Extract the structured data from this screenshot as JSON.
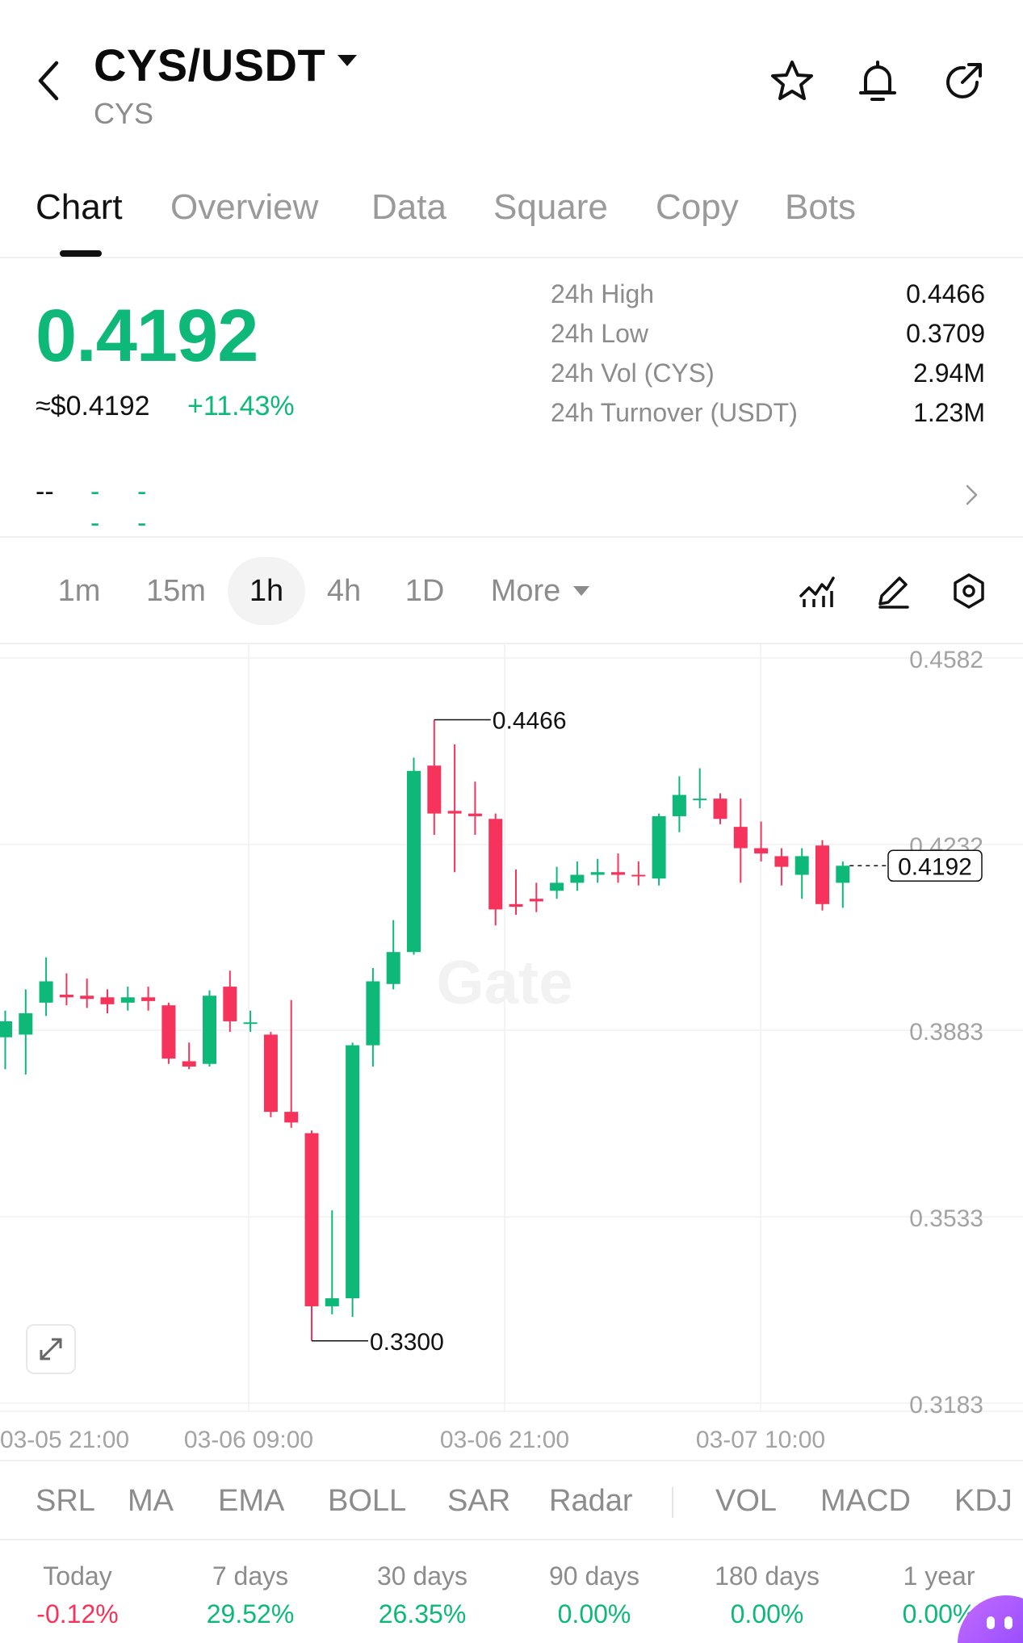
{
  "header": {
    "pair": "CYS/USDT",
    "base": "CYS",
    "icons": [
      "back-icon",
      "star-icon",
      "bell-icon",
      "share-icon"
    ]
  },
  "tabs": [
    {
      "label": "Chart",
      "active": true
    },
    {
      "label": "Overview",
      "active": false
    },
    {
      "label": "Data",
      "active": false
    },
    {
      "label": "Square",
      "active": false
    },
    {
      "label": "Copy",
      "active": false
    },
    {
      "label": "Bots",
      "active": false
    }
  ],
  "price": {
    "last": "0.4192",
    "usd": "≈$0.4192",
    "change": "+11.43%"
  },
  "stats": [
    {
      "key": "24h  High",
      "value": "0.4466"
    },
    {
      "key": "24h  Low",
      "value": "0.3709"
    },
    {
      "key": "24h  Vol (CYS)",
      "value": "2.94M"
    },
    {
      "key": "24h  Turnover (USDT)",
      "value": "1.23M"
    }
  ],
  "dashes": {
    "first": "--",
    "second": "--",
    "third": "--"
  },
  "intervals": [
    {
      "label": "1m",
      "active": false
    },
    {
      "label": "15m",
      "active": false
    },
    {
      "label": "1h",
      "active": true
    },
    {
      "label": "4h",
      "active": false
    },
    {
      "label": "1D",
      "active": false
    },
    {
      "label": "More",
      "active": false
    }
  ],
  "tools": [
    "indicator-icon",
    "draw-pen-icon",
    "settings-hex-icon"
  ],
  "colors": {
    "up": "#0eb879",
    "down": "#f6345b",
    "grid": "#f0f0f0",
    "text_muted": "#8c8c8c"
  },
  "chart_data": {
    "type": "candlestick",
    "watermark": "Gate",
    "yticks": [
      "0.4582",
      "0.4232",
      "0.3883",
      "0.3533",
      "0.3183"
    ],
    "xticks": [
      "03-05 21:00",
      "03-06 09:00",
      "03-06 21:00",
      "03-07 10:00"
    ],
    "ylim": [
      0.3183,
      0.4582
    ],
    "high_label": "0.4466",
    "low_label": "0.3300",
    "last_price_label": "0.4192",
    "candles": [
      {
        "o": 0.387,
        "c": 0.39,
        "h": 0.392,
        "l": 0.381
      },
      {
        "o": 0.3875,
        "c": 0.3915,
        "h": 0.396,
        "l": 0.38
      },
      {
        "o": 0.3935,
        "c": 0.3975,
        "h": 0.402,
        "l": 0.391
      },
      {
        "o": 0.395,
        "c": 0.3945,
        "h": 0.399,
        "l": 0.393
      },
      {
        "o": 0.3948,
        "c": 0.3942,
        "h": 0.398,
        "l": 0.3925
      },
      {
        "o": 0.3945,
        "c": 0.3932,
        "h": 0.396,
        "l": 0.3915
      },
      {
        "o": 0.3935,
        "c": 0.3945,
        "h": 0.3965,
        "l": 0.392
      },
      {
        "o": 0.3945,
        "c": 0.3938,
        "h": 0.3965,
        "l": 0.392
      },
      {
        "o": 0.393,
        "c": 0.383,
        "h": 0.3935,
        "l": 0.382
      },
      {
        "o": 0.3825,
        "c": 0.3815,
        "h": 0.386,
        "l": 0.381
      },
      {
        "o": 0.382,
        "c": 0.3948,
        "h": 0.3958,
        "l": 0.3815
      },
      {
        "o": 0.3965,
        "c": 0.39,
        "h": 0.3995,
        "l": 0.388
      },
      {
        "o": 0.3898,
        "c": 0.3898,
        "h": 0.392,
        "l": 0.388
      },
      {
        "o": 0.3875,
        "c": 0.373,
        "h": 0.388,
        "l": 0.372
      },
      {
        "o": 0.373,
        "c": 0.371,
        "h": 0.394,
        "l": 0.37
      },
      {
        "o": 0.369,
        "c": 0.3365,
        "h": 0.3695,
        "l": 0.33
      },
      {
        "o": 0.3365,
        "c": 0.338,
        "h": 0.3545,
        "l": 0.335
      },
      {
        "o": 0.338,
        "c": 0.3855,
        "h": 0.386,
        "l": 0.3345
      },
      {
        "o": 0.3855,
        "c": 0.3975,
        "h": 0.4,
        "l": 0.3815
      },
      {
        "o": 0.397,
        "c": 0.403,
        "h": 0.409,
        "l": 0.396
      },
      {
        "o": 0.403,
        "c": 0.437,
        "h": 0.4395,
        "l": 0.4025
      },
      {
        "o": 0.438,
        "c": 0.429,
        "h": 0.4466,
        "l": 0.425
      },
      {
        "o": 0.4295,
        "c": 0.429,
        "h": 0.442,
        "l": 0.418
      },
      {
        "o": 0.429,
        "c": 0.4285,
        "h": 0.435,
        "l": 0.425
      },
      {
        "o": 0.428,
        "c": 0.411,
        "h": 0.429,
        "l": 0.408
      },
      {
        "o": 0.412,
        "c": 0.4115,
        "h": 0.4185,
        "l": 0.41
      },
      {
        "o": 0.413,
        "c": 0.4125,
        "h": 0.416,
        "l": 0.4105
      },
      {
        "o": 0.4145,
        "c": 0.416,
        "h": 0.419,
        "l": 0.413
      },
      {
        "o": 0.416,
        "c": 0.4175,
        "h": 0.42,
        "l": 0.4145
      },
      {
        "o": 0.4175,
        "c": 0.418,
        "h": 0.4205,
        "l": 0.416
      },
      {
        "o": 0.418,
        "c": 0.4175,
        "h": 0.4215,
        "l": 0.416
      },
      {
        "o": 0.4175,
        "c": 0.4172,
        "h": 0.42,
        "l": 0.4155
      },
      {
        "o": 0.4168,
        "c": 0.4285,
        "h": 0.429,
        "l": 0.4155
      },
      {
        "o": 0.4285,
        "c": 0.4325,
        "h": 0.436,
        "l": 0.4255
      },
      {
        "o": 0.4318,
        "c": 0.4318,
        "h": 0.4375,
        "l": 0.43
      },
      {
        "o": 0.4318,
        "c": 0.428,
        "h": 0.4328,
        "l": 0.427
      },
      {
        "o": 0.4265,
        "c": 0.4225,
        "h": 0.4318,
        "l": 0.416
      },
      {
        "o": 0.4225,
        "c": 0.4215,
        "h": 0.4275,
        "l": 0.42
      },
      {
        "o": 0.421,
        "c": 0.419,
        "h": 0.4225,
        "l": 0.4155
      },
      {
        "o": 0.4175,
        "c": 0.421,
        "h": 0.4225,
        "l": 0.413
      },
      {
        "o": 0.423,
        "c": 0.412,
        "h": 0.424,
        "l": 0.4108
      },
      {
        "o": 0.416,
        "c": 0.4192,
        "h": 0.42,
        "l": 0.4113
      }
    ]
  },
  "indicators": [
    "SRL",
    "MA",
    "EMA",
    "BOLL",
    "SAR",
    "Radar",
    "VOL",
    "MACD",
    "KDJ"
  ],
  "periods": [
    {
      "label": "Today",
      "value": "-0.12%",
      "dir": "down"
    },
    {
      "label": "7 days",
      "value": "29.52%",
      "dir": "up"
    },
    {
      "label": "30 days",
      "value": "26.35%",
      "dir": "up"
    },
    {
      "label": "90 days",
      "value": "0.00%",
      "dir": "up"
    },
    {
      "label": "180 days",
      "value": "0.00%",
      "dir": "up"
    },
    {
      "label": "1 year",
      "value": "0.00%",
      "dir": "up"
    }
  ]
}
